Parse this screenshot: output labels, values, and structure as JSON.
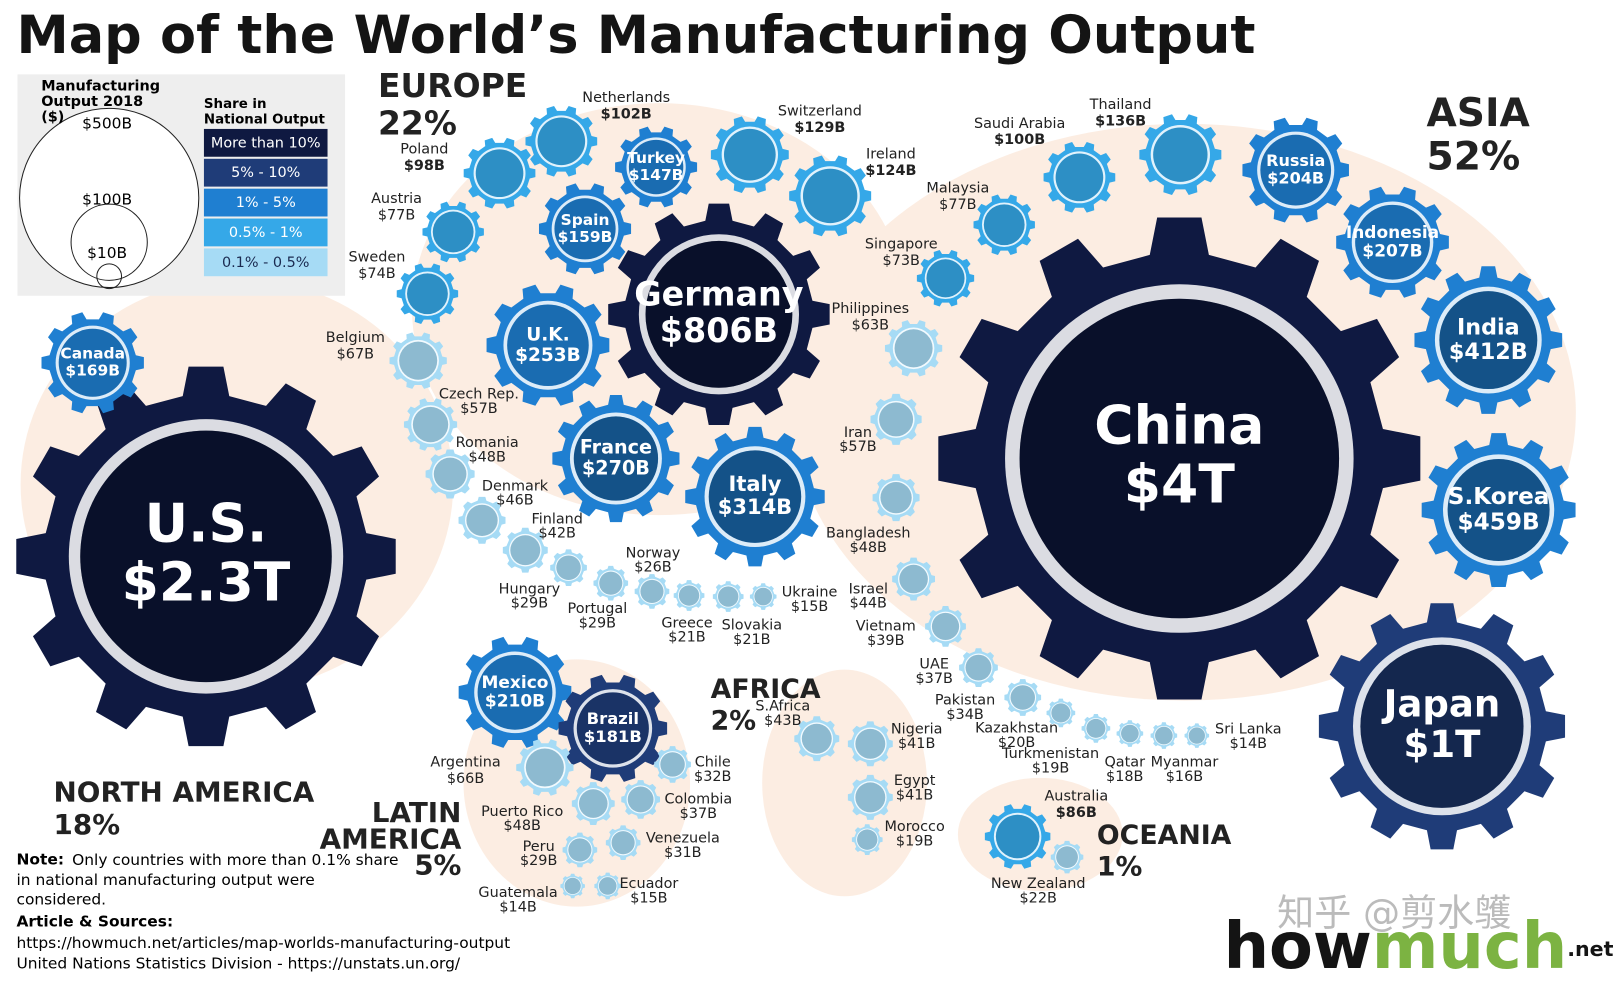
{
  "title": "Map of the World’s Manufacturing Output",
  "legend": {
    "size_title": "Manufacturing Output 2018 ($)",
    "sizes": [
      "$500B",
      "$100B",
      "$10B"
    ],
    "share_title": "Share in National Output (%)",
    "shares": [
      {
        "label": "More than 10%",
        "color": "#0f1941"
      },
      {
        "label": "5% - 10%",
        "color": "#1f3c78"
      },
      {
        "label": "1% - 5%",
        "color": "#1f7fd1"
      },
      {
        "label": "0.5% - 1%",
        "color": "#35a8e8"
      },
      {
        "label": "0.1% - 0.5%",
        "color": "#a6dbf5"
      }
    ]
  },
  "regions": [
    {
      "name": "EUROPE",
      "share": "22%"
    },
    {
      "name": "ASIA",
      "share": "52%"
    },
    {
      "name": "NORTH AMERICA",
      "share": "18%"
    },
    {
      "name": "LATIN AMERICA",
      "share": "5%"
    },
    {
      "name": "AFRICA",
      "share": "2%"
    },
    {
      "name": "OCEANIA",
      "share": "1%"
    }
  ],
  "countries": [
    {
      "name": "U.S.",
      "output": "$2.3T",
      "color": "#0f1941"
    },
    {
      "name": "China",
      "output": "$4T",
      "color": "#0f1941"
    },
    {
      "name": "Japan",
      "output": "$1T",
      "color": "#1f3c78"
    },
    {
      "name": "Germany",
      "output": "$806B",
      "color": "#0f1941"
    },
    {
      "name": "Italy",
      "output": "$314B",
      "color": "#1f7fd1"
    },
    {
      "name": "France",
      "output": "$270B",
      "color": "#1f7fd1"
    },
    {
      "name": "U.K.",
      "output": "$253B",
      "color": "#1f7fd1"
    },
    {
      "name": "S.Korea",
      "output": "$459B",
      "color": "#1f7fd1"
    },
    {
      "name": "India",
      "output": "$412B",
      "color": "#1f7fd1"
    },
    {
      "name": "Indonesia",
      "output": "$207B",
      "color": "#1f7fd1"
    },
    {
      "name": "Russia",
      "output": "$204B",
      "color": "#1f7fd1"
    },
    {
      "name": "Mexico",
      "output": "$210B",
      "color": "#1f7fd1"
    },
    {
      "name": "Brazil",
      "output": "$181B",
      "color": "#1f3c78"
    },
    {
      "name": "Canada",
      "output": "$169B",
      "color": "#1f7fd1"
    },
    {
      "name": "Spain",
      "output": "$159B",
      "color": "#1f7fd1"
    },
    {
      "name": "Turkey",
      "output": "$147B",
      "color": "#1f7fd1"
    },
    {
      "name": "Netherlands",
      "output": "$102B",
      "color": "#35a8e8"
    },
    {
      "name": "Switzerland",
      "output": "$129B",
      "color": "#35a8e8"
    },
    {
      "name": "Ireland",
      "output": "$124B",
      "color": "#35a8e8"
    },
    {
      "name": "Poland",
      "output": "$98B",
      "color": "#35a8e8"
    },
    {
      "name": "Austria",
      "output": "$77B",
      "color": "#35a8e8"
    },
    {
      "name": "Sweden",
      "output": "$74B",
      "color": "#35a8e8"
    },
    {
      "name": "Belgium",
      "output": "$67B",
      "color": "#a6dbf5"
    },
    {
      "name": "Czech Rep.",
      "output": "$57B",
      "color": "#a6dbf5"
    },
    {
      "name": "Romania",
      "output": "$48B",
      "color": "#a6dbf5"
    },
    {
      "name": "Denmark",
      "output": "$46B",
      "color": "#a6dbf5"
    },
    {
      "name": "Finland",
      "output": "$42B",
      "color": "#a6dbf5"
    },
    {
      "name": "Hungary",
      "output": "$29B",
      "color": "#a6dbf5"
    },
    {
      "name": "Portugal",
      "output": "$29B",
      "color": "#a6dbf5"
    },
    {
      "name": "Norway",
      "output": "$26B",
      "color": "#a6dbf5"
    },
    {
      "name": "Greece",
      "output": "$21B",
      "color": "#a6dbf5"
    },
    {
      "name": "Slovakia",
      "output": "$21B",
      "color": "#a6dbf5"
    },
    {
      "name": "Ukraine",
      "output": "$15B",
      "color": "#a6dbf5"
    },
    {
      "name": "Saudi Arabia",
      "output": "$100B",
      "color": "#35a8e8"
    },
    {
      "name": "Thailand",
      "output": "$136B",
      "color": "#35a8e8"
    },
    {
      "name": "Malaysia",
      "output": "$77B",
      "color": "#35a8e8"
    },
    {
      "name": "Singapore",
      "output": "$73B",
      "color": "#35a8e8"
    },
    {
      "name": "Philippines",
      "output": "$63B",
      "color": "#a6dbf5"
    },
    {
      "name": "Iran",
      "output": "$57B",
      "color": "#a6dbf5"
    },
    {
      "name": "Bangladesh",
      "output": "$48B",
      "color": "#a6dbf5"
    },
    {
      "name": "Israel",
      "output": "$44B",
      "color": "#a6dbf5"
    },
    {
      "name": "Vietnam",
      "output": "$39B",
      "color": "#a6dbf5"
    },
    {
      "name": "UAE",
      "output": "$37B",
      "color": "#a6dbf5"
    },
    {
      "name": "Pakistan",
      "output": "$34B",
      "color": "#a6dbf5"
    },
    {
      "name": "Kazakhstan",
      "output": "$20B",
      "color": "#a6dbf5"
    },
    {
      "name": "Turkmenistan",
      "output": "$19B",
      "color": "#a6dbf5"
    },
    {
      "name": "Qatar",
      "output": "$18B",
      "color": "#a6dbf5"
    },
    {
      "name": "Myanmar",
      "output": "$16B",
      "color": "#a6dbf5"
    },
    {
      "name": "Sri Lanka",
      "output": "$14B",
      "color": "#a6dbf5"
    },
    {
      "name": "S.Africa",
      "output": "$43B",
      "color": "#a6dbf5"
    },
    {
      "name": "Nigeria",
      "output": "$41B",
      "color": "#a6dbf5"
    },
    {
      "name": "Egypt",
      "output": "$41B",
      "color": "#a6dbf5"
    },
    {
      "name": "Morocco",
      "output": "$19B",
      "color": "#a6dbf5"
    },
    {
      "name": "Argentina",
      "output": "$66B",
      "color": "#a6dbf5"
    },
    {
      "name": "Chile",
      "output": "$32B",
      "color": "#a6dbf5"
    },
    {
      "name": "Colombia",
      "output": "$37B",
      "color": "#a6dbf5"
    },
    {
      "name": "Puerto Rico",
      "output": "$48B",
      "color": "#a6dbf5"
    },
    {
      "name": "Venezuela",
      "output": "$31B",
      "color": "#a6dbf5"
    },
    {
      "name": "Peru",
      "output": "$29B",
      "color": "#a6dbf5"
    },
    {
      "name": "Ecuador",
      "output": "$15B",
      "color": "#a6dbf5"
    },
    {
      "name": "Guatemala",
      "output": "$14B",
      "color": "#a6dbf5"
    },
    {
      "name": "Australia",
      "output": "$86B",
      "color": "#35a8e8"
    },
    {
      "name": "New Zealand",
      "output": "$22B",
      "color": "#a6dbf5"
    }
  ],
  "note": {
    "label": "Note:",
    "text": "Only countries with more than 0.1% share in national manufacturing output were considered."
  },
  "sources": {
    "label": "Article & Sources:",
    "lines": [
      "https://howmuch.net/articles/map-worlds-manufacturing-output",
      "United Nations Statistics Division - https://unstats.un.org/"
    ]
  },
  "logo": {
    "first": "how",
    "second": "much",
    "suffix": ".net"
  },
  "watermark": "知乎 @剪水鹱"
}
